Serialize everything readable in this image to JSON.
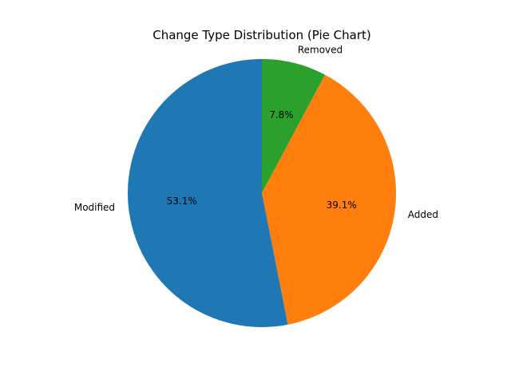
{
  "chart_data": {
    "type": "pie",
    "title": "Change Type Distribution (Pie Chart)",
    "slices": [
      {
        "label": "Removed",
        "value": 7.8,
        "pct_label": "7.8%",
        "color": "#2ca02c"
      },
      {
        "label": "Added",
        "value": 39.1,
        "pct_label": "39.1%",
        "color": "#ff7f0e"
      },
      {
        "label": "Modified",
        "value": 53.1,
        "pct_label": "53.1%",
        "color": "#1f77b4"
      }
    ],
    "start_angle_deg": 90,
    "direction": "clockwise"
  }
}
